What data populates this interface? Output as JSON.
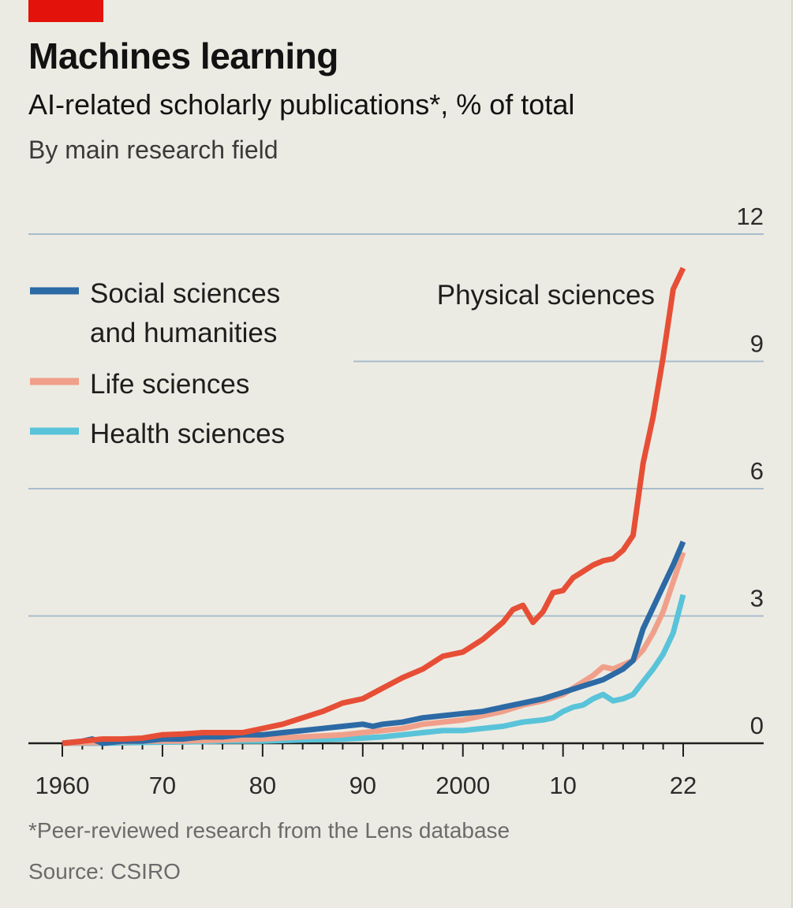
{
  "title": "Machines learning",
  "subtitle": "AI-related scholarly publications*, % of total",
  "subtitle2": "By main research field",
  "footnote": "*Peer-reviewed research from the Lens database",
  "source": "Source: CSIRO",
  "chart_data": {
    "type": "line",
    "ylim": [
      0,
      12
    ],
    "xlim": [
      1960,
      2022
    ],
    "y_ticks": [
      0,
      3,
      6,
      9,
      12
    ],
    "x_tick_labels": [
      {
        "value": 1960,
        "label": "1960"
      },
      {
        "value": 1970,
        "label": "70"
      },
      {
        "value": 1980,
        "label": "80"
      },
      {
        "value": 1990,
        "label": "90"
      },
      {
        "value": 2000,
        "label": "2000"
      },
      {
        "value": 2010,
        "label": "10"
      },
      {
        "value": 2022,
        "label": "22"
      }
    ],
    "grid": true,
    "legend_placement": "top-left",
    "series": [
      {
        "name": "Physical sciences",
        "color": "#e64f36",
        "direct_label": "Physical sciences",
        "x": [
          1960,
          1962,
          1964,
          1966,
          1968,
          1970,
          1972,
          1974,
          1976,
          1978,
          1980,
          1982,
          1984,
          1986,
          1988,
          1990,
          1992,
          1994,
          1996,
          1998,
          2000,
          2002,
          2004,
          2005,
          2006,
          2007,
          2008,
          2009,
          2010,
          2011,
          2012,
          2013,
          2014,
          2015,
          2016,
          2017,
          2018,
          2019,
          2020,
          2021,
          2022
        ],
        "values": [
          0.0,
          0.05,
          0.1,
          0.1,
          0.12,
          0.2,
          0.22,
          0.25,
          0.25,
          0.25,
          0.35,
          0.45,
          0.6,
          0.75,
          0.95,
          1.05,
          1.3,
          1.55,
          1.75,
          2.05,
          2.15,
          2.45,
          2.85,
          3.15,
          3.25,
          2.85,
          3.1,
          3.55,
          3.6,
          3.9,
          4.05,
          4.2,
          4.3,
          4.35,
          4.55,
          4.9,
          6.6,
          7.7,
          9.1,
          10.7,
          11.2
        ]
      },
      {
        "name": "Social sciences and humanities",
        "color": "#2c6aa5",
        "x": [
          1960,
          1962,
          1963,
          1964,
          1966,
          1968,
          1970,
          1972,
          1974,
          1976,
          1978,
          1980,
          1982,
          1984,
          1986,
          1988,
          1990,
          1991,
          1992,
          1994,
          1996,
          1998,
          2000,
          2002,
          2004,
          2006,
          2008,
          2010,
          2012,
          2014,
          2016,
          2017,
          2018,
          2019,
          2020,
          2021,
          2022
        ],
        "values": [
          0.0,
          0.05,
          0.1,
          0.0,
          0.05,
          0.05,
          0.1,
          0.1,
          0.15,
          0.15,
          0.2,
          0.2,
          0.25,
          0.3,
          0.35,
          0.4,
          0.45,
          0.4,
          0.45,
          0.5,
          0.6,
          0.65,
          0.7,
          0.75,
          0.85,
          0.95,
          1.05,
          1.2,
          1.35,
          1.5,
          1.75,
          1.95,
          2.7,
          3.2,
          3.7,
          4.2,
          4.75
        ]
      },
      {
        "name": "Life sciences",
        "color": "#f0a08a",
        "x": [
          1960,
          1964,
          1968,
          1972,
          1976,
          1980,
          1984,
          1988,
          1990,
          1992,
          1994,
          1996,
          1998,
          2000,
          2002,
          2004,
          2006,
          2008,
          2010,
          2011,
          2012,
          2013,
          2014,
          2015,
          2016,
          2017,
          2018,
          2019,
          2020,
          2021,
          2022
        ],
        "values": [
          0.0,
          0.02,
          0.05,
          0.05,
          0.08,
          0.1,
          0.15,
          0.2,
          0.25,
          0.3,
          0.35,
          0.45,
          0.5,
          0.55,
          0.65,
          0.75,
          0.9,
          1.0,
          1.15,
          1.3,
          1.45,
          1.6,
          1.8,
          1.75,
          1.85,
          1.95,
          2.2,
          2.6,
          3.1,
          3.8,
          4.5
        ]
      },
      {
        "name": "Health sciences",
        "color": "#59c3d9",
        "x": [
          1960,
          1964,
          1968,
          1972,
          1976,
          1980,
          1984,
          1988,
          1990,
          1992,
          1994,
          1996,
          1998,
          2000,
          2002,
          2004,
          2006,
          2008,
          2009,
          2010,
          2011,
          2012,
          2013,
          2014,
          2015,
          2016,
          2017,
          2018,
          2019,
          2020,
          2021,
          2022
        ],
        "values": [
          0.0,
          0.0,
          0.02,
          0.03,
          0.05,
          0.05,
          0.08,
          0.1,
          0.12,
          0.15,
          0.2,
          0.25,
          0.3,
          0.3,
          0.35,
          0.4,
          0.5,
          0.55,
          0.6,
          0.75,
          0.85,
          0.9,
          1.05,
          1.15,
          1.0,
          1.05,
          1.15,
          1.45,
          1.75,
          2.1,
          2.6,
          3.5
        ]
      }
    ],
    "legend": [
      {
        "label_line1": "Social sciences",
        "label_line2": "and humanities",
        "color": "#2c6aa5"
      },
      {
        "label_line1": "Life sciences",
        "color": "#f0a08a"
      },
      {
        "label_line1": "Health sciences",
        "color": "#59c3d9"
      }
    ]
  }
}
